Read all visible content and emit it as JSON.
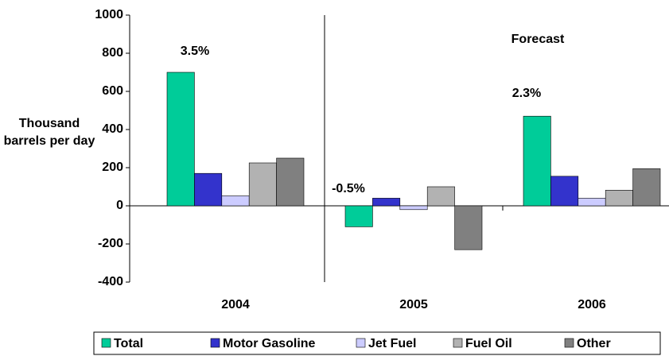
{
  "chart_data": {
    "type": "bar",
    "y_label": "Thousand barrels per day",
    "categories": [
      "2004",
      "2005",
      "2006"
    ],
    "series": [
      {
        "name": "Total",
        "color": "#00cc99",
        "values": [
          700,
          -110,
          470
        ]
      },
      {
        "name": "Motor Gasoline",
        "color": "#3333cc",
        "values": [
          170,
          40,
          155
        ]
      },
      {
        "name": "Jet Fuel",
        "color": "#ccccff",
        "values": [
          52,
          -20,
          40
        ]
      },
      {
        "name": "Fuel Oil",
        "color": "#b2b2b2",
        "values": [
          225,
          100,
          82
        ]
      },
      {
        "name": "Other",
        "color": "#808080",
        "values": [
          250,
          -230,
          195
        ]
      }
    ],
    "annotations": [
      "3.5%",
      "-0.5%",
      "2.3%",
      "Forecast"
    ],
    "ylim": [
      -400,
      1000
    ],
    "yticks": [
      -400,
      -200,
      0,
      200,
      400,
      600,
      800,
      1000
    ],
    "grid": false,
    "legend": "bottom"
  }
}
